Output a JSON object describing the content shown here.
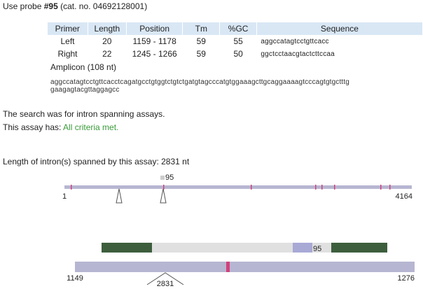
{
  "header": {
    "prefix": "Use probe",
    "probe": "#95",
    "catalog": "(cat. no. 04692128001)"
  },
  "primer_table": {
    "columns": [
      "Primer",
      "Length",
      "Position",
      "Tm",
      "%GC",
      "Sequence"
    ],
    "rows": [
      [
        "Left",
        20,
        "1159 - 1178",
        59,
        55,
        "aggccatagtcctgttcacc"
      ],
      [
        "Right",
        22,
        "1245 - 1266",
        59,
        50,
        "ggctcctaacgtactcttccaa"
      ]
    ]
  },
  "amplicon": {
    "title": "Amplicon (108 nt)",
    "sequence_lines": [
      "aggccatagtcctgttcacctcagatgcctgtggtctgtctgatgtagcccatgtggaaagcttgcaggaaaagtcccagtgtgctttg",
      "gaagagtacgttaggagcc"
    ]
  },
  "search_note": "The search was for intron spanning assays.",
  "assay_status": {
    "label": "This assay has:",
    "value": "All criteria met."
  },
  "intron_length": "Length of intron(s) spanned by this assay: 2831 nt",
  "gene_map": {
    "probe_label": "95",
    "start": "1",
    "end": "4164"
  },
  "amplicon_map": {
    "probe_label": "95",
    "start": "1149",
    "end": "1276",
    "intron_label": "2831"
  }
}
